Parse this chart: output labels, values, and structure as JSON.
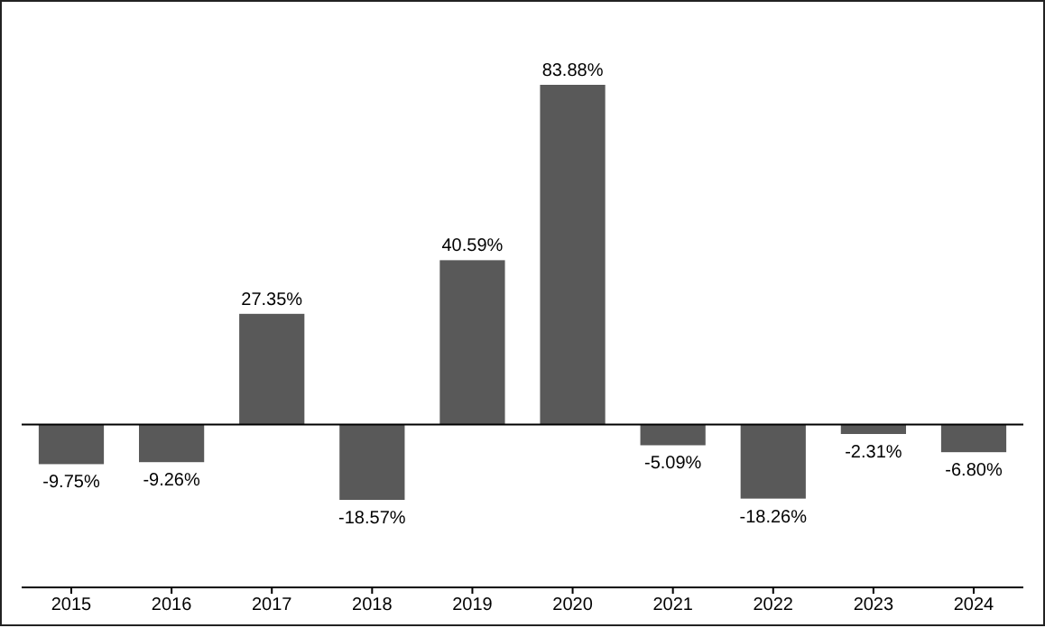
{
  "chart_data": {
    "type": "bar",
    "categories": [
      "2015",
      "2016",
      "2017",
      "2018",
      "2019",
      "2020",
      "2021",
      "2022",
      "2023",
      "2024"
    ],
    "values": [
      -9.75,
      -9.26,
      27.35,
      -18.57,
      40.59,
      83.88,
      -5.09,
      -18.26,
      -2.31,
      -6.8
    ],
    "value_labels": [
      "-9.75%",
      "-9.26%",
      "27.35%",
      "-18.57%",
      "40.59%",
      "83.88%",
      "-5.09%",
      "-18.26%",
      "-2.31%",
      "-6.80%"
    ],
    "color": "#595959"
  }
}
